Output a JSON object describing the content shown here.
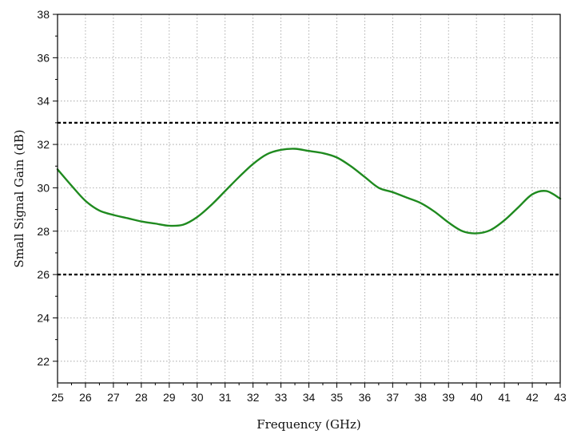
{
  "chart_data": {
    "type": "line",
    "title": "",
    "xlabel": "Frequency (GHz)",
    "ylabel": "Small Signal Gain (dB)",
    "xlim": [
      25,
      43
    ],
    "ylim": [
      21,
      38
    ],
    "x_ticks": [
      25,
      26,
      27,
      28,
      29,
      30,
      31,
      32,
      33,
      34,
      35,
      36,
      37,
      38,
      39,
      40,
      41,
      42,
      43
    ],
    "y_ticks": [
      22,
      24,
      26,
      28,
      30,
      32,
      34,
      36,
      38
    ],
    "grid": true,
    "series": [
      {
        "color": "#1f8a1f",
        "x": [
          25.0,
          25.5,
          26.0,
          26.5,
          27.0,
          27.5,
          28.0,
          28.5,
          29.0,
          29.5,
          30.0,
          30.5,
          31.0,
          31.5,
          32.0,
          32.5,
          33.0,
          33.5,
          34.0,
          34.5,
          35.0,
          35.5,
          36.0,
          36.5,
          37.0,
          37.5,
          38.0,
          38.5,
          39.0,
          39.5,
          40.0,
          40.5,
          41.0,
          41.5,
          42.0,
          42.5,
          43.0
        ],
        "y": [
          30.85,
          30.1,
          29.4,
          28.95,
          28.75,
          28.6,
          28.45,
          28.35,
          28.25,
          28.3,
          28.65,
          29.2,
          29.85,
          30.5,
          31.1,
          31.55,
          31.75,
          31.8,
          31.7,
          31.6,
          31.4,
          31.0,
          30.5,
          30.0,
          29.8,
          29.55,
          29.3,
          28.9,
          28.4,
          28.0,
          27.9,
          28.05,
          28.5,
          29.1,
          29.7,
          29.85,
          29.5
        ]
      }
    ],
    "reference_lines": [
      {
        "y": 33,
        "color": "#000000",
        "style": "dashed"
      },
      {
        "y": 26,
        "color": "#000000",
        "style": "dashed"
      }
    ]
  }
}
